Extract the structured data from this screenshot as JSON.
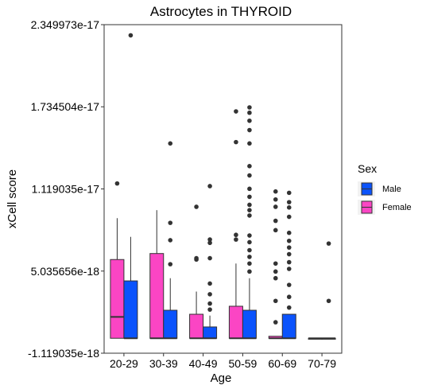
{
  "chart_data": {
    "type": "box",
    "title": "Astrocytes in THYROID",
    "xlabel": "Age",
    "ylabel": "xCell score",
    "categories": [
      "20-29",
      "30-39",
      "40-49",
      "50-59",
      "60-69",
      "70-79"
    ],
    "y_ticks": [
      -1.119035e-18,
      5.035656e-18,
      1.119035e-17,
      1.734504e-17,
      2.349973e-17
    ],
    "y_tick_labels": [
      "-1.119035e-18",
      "5.035656e-18",
      "1.119035e-17",
      "1.734504e-17",
      "2.349973e-17"
    ],
    "ylim": [
      -1.119035e-18,
      2.349973e-17
    ],
    "legend": {
      "title": "Sex",
      "entries": [
        {
          "label": "Male",
          "color": "#0B53FC"
        },
        {
          "label": "Female",
          "color": "#FB45C4"
        }
      ],
      "position": "right"
    },
    "grid": false,
    "series": [
      {
        "name": "Female",
        "color": "#FB45C4",
        "boxes": [
          {
            "category": "20-29",
            "whisker_low": 0,
            "q1": 0,
            "median": 1.6e-18,
            "q3": 5.9e-18,
            "whisker_high": 9e-18,
            "outliers": [
              1.16e-17
            ]
          },
          {
            "category": "30-39",
            "whisker_low": 0,
            "q1": 0,
            "median": 0,
            "q3": 6.35e-18,
            "whisker_high": 9.6e-18,
            "outliers": []
          },
          {
            "category": "40-49",
            "whisker_low": 0,
            "q1": 0,
            "median": 0,
            "q3": 1.8e-18,
            "whisker_high": 3.5e-18,
            "outliers": [
              5.9e-18,
              6e-18,
              9.85e-18
            ]
          },
          {
            "category": "50-59",
            "whisker_low": 0,
            "q1": 0,
            "median": 0,
            "q3": 2.4e-18,
            "whisker_high": 5.6e-18,
            "outliers": [
              7.4e-18,
              7.75e-18,
              1.47e-17,
              1.7e-17
            ]
          },
          {
            "category": "60-69",
            "whisker_low": 0,
            "q1": 0,
            "median": 0,
            "q3": 1.5e-19,
            "whisker_high": 1.5e-19,
            "outliers": [
              1.2e-18,
              2.8e-18,
              4.5e-18,
              5e-18,
              5.6e-18,
              8.1e-18,
              8.8e-18,
              9.85e-18,
              1.04e-17,
              1.1e-17
            ]
          },
          {
            "category": "70-79",
            "whisker_low": 0,
            "q1": 0,
            "median": 0,
            "q3": 0,
            "whisker_high": 0,
            "outliers": []
          }
        ]
      },
      {
        "name": "Male",
        "color": "#0B53FC",
        "boxes": [
          {
            "category": "20-29",
            "whisker_low": 0,
            "q1": 0,
            "median": 0,
            "q3": 4.3e-18,
            "whisker_high": 7.6e-18,
            "outliers": [
              2.27e-17
            ]
          },
          {
            "category": "30-39",
            "whisker_low": 0,
            "q1": 0,
            "median": 0,
            "q3": 2.1e-18,
            "whisker_high": 4.5e-18,
            "outliers": [
              5.55e-18,
              7.35e-18,
              8.65e-18,
              1.46e-17
            ]
          },
          {
            "category": "40-49",
            "whisker_low": 0,
            "q1": 0,
            "median": 0,
            "q3": 8.5e-19,
            "whisker_high": 1.7e-18,
            "outliers": [
              2.15e-18,
              2.6e-18,
              3.3e-18,
              4.1e-18,
              6e-18,
              7.15e-18,
              7.4e-18,
              1.14e-17
            ]
          },
          {
            "category": "50-59",
            "whisker_low": 0,
            "q1": 0,
            "median": 0,
            "q3": 2.1e-18,
            "whisker_high": 4.5e-18,
            "outliers": [
              5e-18,
              5.6e-18,
              6.1e-18,
              6.6e-18,
              7.2e-18,
              7.7e-18,
              9.2e-18,
              9.6e-18,
              1e-17,
              1.06e-17,
              1.12e-17,
              1.22e-17,
              1.29e-17,
              1.46e-17,
              1.56e-17,
              1.63e-17,
              1.69e-17,
              1.73e-17
            ]
          },
          {
            "category": "60-69",
            "whisker_low": 0,
            "q1": 0,
            "median": 0,
            "q3": 1.8e-18,
            "whisker_high": 1.8e-18,
            "outliers": [
              2.3e-18,
              3.1e-18,
              4e-18,
              5.2e-18,
              5.7e-18,
              6.3e-18,
              6.8e-18,
              7.3e-18,
              7.9e-18,
              9.1e-18,
              9.8e-18,
              1.02e-17,
              1.09e-17
            ]
          },
          {
            "category": "70-79",
            "whisker_low": 0,
            "q1": 0,
            "median": 0,
            "q3": 0,
            "whisker_high": 0,
            "outliers": [
              2.8e-18,
              7.1e-18
            ]
          }
        ]
      }
    ]
  }
}
